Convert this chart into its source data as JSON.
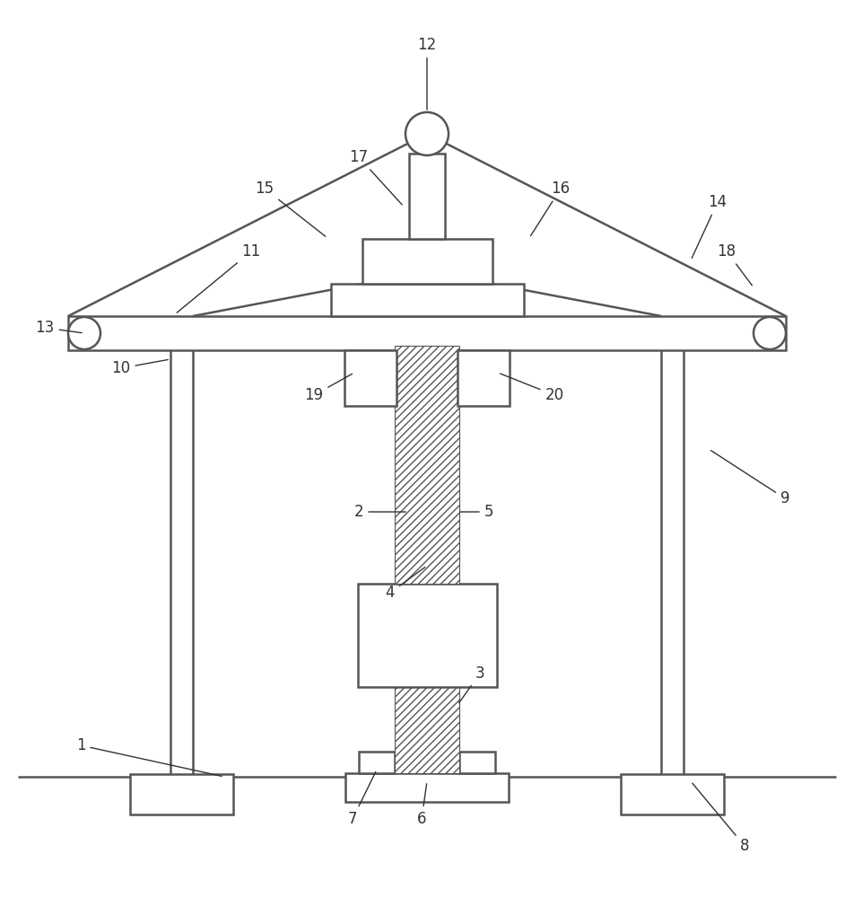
{
  "bg_color": "#ffffff",
  "line_color": "#555555",
  "label_color": "#333333",
  "fig_width": 9.52,
  "fig_height": 10.0
}
